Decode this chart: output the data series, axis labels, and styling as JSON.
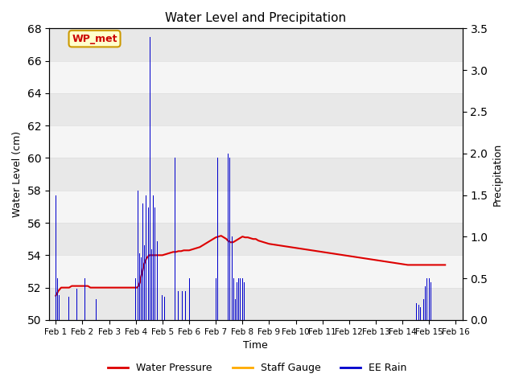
{
  "title": "Water Level and Precipitation",
  "xlabel": "Time",
  "ylabel_left": "Water Level (cm)",
  "ylabel_right": "Precipitation",
  "annotation_text": "WP_met",
  "annotation_bg": "#ffffcc",
  "annotation_border": "#cc9900",
  "annotation_color": "#cc0000",
  "ylim_left": [
    50,
    68
  ],
  "ylim_right": [
    0.0,
    3.5
  ],
  "yticks_left": [
    50,
    52,
    54,
    56,
    58,
    60,
    62,
    64,
    66,
    68
  ],
  "yticks_right": [
    0.0,
    0.5,
    1.0,
    1.5,
    2.0,
    2.5,
    3.0,
    3.5
  ],
  "xtick_labels": [
    "Feb 1",
    "Feb 2",
    "Feb 3",
    "Feb 4",
    "Feb 5",
    "Feb 6",
    "Feb 7",
    "Feb 8",
    "Feb 9",
    "Feb 10",
    "Feb 11",
    "Feb 12",
    "Feb 13",
    "Feb 14",
    "Feb 15",
    "Feb 16"
  ],
  "water_pressure_color": "#dd0000",
  "staff_gauge_color": "#ffaa00",
  "ee_rain_color": "#0000cc",
  "legend_labels": [
    "Water Pressure",
    "Staff Gauge",
    "EE Rain"
  ],
  "water_pressure_x": [
    1.0,
    1.1,
    1.15,
    1.2,
    1.3,
    1.4,
    1.5,
    1.6,
    1.7,
    1.8,
    1.9,
    2.0,
    2.1,
    2.2,
    2.3,
    2.4,
    2.5,
    2.6,
    2.7,
    2.8,
    2.9,
    3.0,
    3.1,
    3.2,
    3.3,
    3.4,
    3.5,
    3.6,
    3.7,
    3.8,
    3.9,
    4.0,
    4.05,
    4.1,
    4.15,
    4.2,
    4.25,
    4.3,
    4.35,
    4.4,
    4.45,
    4.5,
    4.55,
    4.6,
    4.65,
    4.7,
    4.75,
    4.8,
    4.85,
    4.9,
    4.95,
    5.0,
    5.1,
    5.2,
    5.3,
    5.4,
    5.5,
    5.6,
    5.7,
    5.8,
    5.9,
    6.0,
    6.1,
    6.2,
    6.3,
    6.4,
    6.5,
    6.6,
    6.7,
    6.8,
    6.9,
    7.0,
    7.1,
    7.2,
    7.3,
    7.4,
    7.45,
    7.5,
    7.55,
    7.6,
    7.65,
    7.7,
    7.75,
    7.8,
    7.85,
    7.9,
    7.95,
    8.0,
    8.1,
    8.2,
    8.3,
    8.4,
    8.5,
    8.6,
    8.7,
    8.8,
    8.9,
    9.0,
    9.2,
    9.4,
    9.6,
    9.8,
    10.0,
    10.2,
    10.4,
    10.6,
    10.8,
    11.0,
    11.2,
    11.4,
    11.6,
    11.8,
    12.0,
    12.2,
    12.4,
    12.6,
    12.8,
    13.0,
    13.2,
    13.4,
    13.6,
    13.8,
    14.0,
    14.2,
    14.4,
    14.6,
    14.8,
    15.0,
    15.2,
    15.4,
    15.6
  ],
  "water_pressure_y": [
    51.5,
    51.8,
    51.9,
    52.0,
    52.0,
    52.0,
    52.0,
    52.1,
    52.1,
    52.1,
    52.1,
    52.1,
    52.1,
    52.1,
    52.0,
    52.0,
    52.0,
    52.0,
    52.0,
    52.0,
    52.0,
    52.0,
    52.0,
    52.0,
    52.0,
    52.0,
    52.0,
    52.0,
    52.0,
    52.0,
    52.0,
    52.0,
    52.0,
    52.1,
    52.3,
    52.7,
    53.0,
    53.4,
    53.6,
    53.8,
    53.9,
    54.0,
    54.0,
    54.0,
    54.0,
    54.0,
    54.0,
    54.0,
    54.0,
    54.0,
    54.0,
    54.0,
    54.05,
    54.1,
    54.15,
    54.2,
    54.2,
    54.25,
    54.25,
    54.3,
    54.3,
    54.3,
    54.35,
    54.4,
    54.45,
    54.5,
    54.6,
    54.7,
    54.8,
    54.9,
    55.0,
    55.1,
    55.15,
    55.2,
    55.1,
    55.0,
    54.9,
    54.85,
    54.8,
    54.8,
    54.8,
    54.85,
    54.9,
    54.95,
    55.0,
    55.05,
    55.1,
    55.15,
    55.1,
    55.1,
    55.05,
    55.0,
    55.0,
    54.9,
    54.85,
    54.8,
    54.75,
    54.7,
    54.65,
    54.6,
    54.55,
    54.5,
    54.45,
    54.4,
    54.35,
    54.3,
    54.25,
    54.2,
    54.15,
    54.1,
    54.05,
    54.0,
    53.95,
    53.9,
    53.85,
    53.8,
    53.75,
    53.7,
    53.65,
    53.6,
    53.55,
    53.5,
    53.45,
    53.4,
    53.4,
    53.4,
    53.4,
    53.4,
    53.4,
    53.4,
    53.4
  ],
  "rain_bars_x": [
    1.0,
    1.07,
    1.13,
    1.5,
    1.8,
    2.1,
    2.5,
    4.0,
    4.07,
    4.13,
    4.2,
    4.27,
    4.33,
    4.4,
    4.47,
    4.53,
    4.6,
    4.67,
    4.73,
    4.8,
    5.0,
    5.07,
    5.47,
    5.6,
    5.73,
    5.87,
    6.0,
    7.0,
    7.07,
    7.47,
    7.53,
    7.6,
    7.67,
    7.73,
    7.8,
    7.87,
    7.93,
    8.0,
    8.07,
    14.53,
    14.6,
    14.67,
    14.8,
    14.87,
    14.93,
    15.0,
    15.07
  ],
  "rain_bars_h": [
    1.5,
    0.5,
    0.3,
    0.28,
    0.38,
    0.5,
    0.25,
    0.5,
    1.55,
    0.8,
    0.75,
    1.4,
    0.9,
    1.5,
    1.35,
    3.4,
    0.85,
    1.5,
    1.35,
    0.95,
    0.3,
    0.28,
    1.95,
    0.35,
    0.35,
    0.35,
    0.5,
    0.5,
    1.95,
    2.0,
    1.95,
    1.0,
    0.5,
    0.25,
    0.45,
    0.5,
    0.5,
    0.5,
    0.45,
    0.2,
    0.18,
    0.15,
    0.25,
    0.4,
    0.5,
    0.5,
    0.45
  ],
  "bar_width": 0.03,
  "grid_color": "#dddddd",
  "band_colors": [
    "#e8e8e8",
    "#f5f5f5"
  ],
  "bg_color": "#f5f5f5",
  "xlim": [
    0.75,
    16.25
  ],
  "figsize": [
    6.4,
    4.8
  ],
  "dpi": 100
}
